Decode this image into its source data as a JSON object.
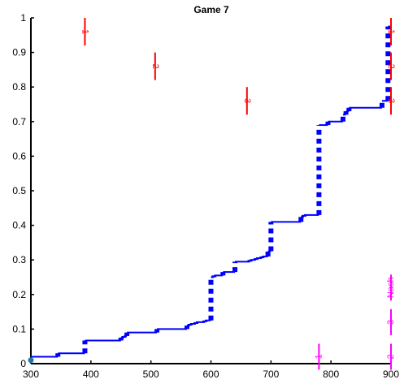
{
  "chart_data": {
    "type": "line",
    "title": "Game 7",
    "xlabel": "",
    "ylabel": "",
    "xlim": [
      300,
      900
    ],
    "ylim": [
      0,
      1
    ],
    "grid": false,
    "legend": "none",
    "x_ticks": [
      300,
      400,
      500,
      600,
      700,
      800,
      900
    ],
    "y_ticks": [
      0,
      0.1,
      0.2,
      0.3,
      0.4,
      0.5,
      0.6,
      0.7,
      0.8,
      0.9,
      1
    ],
    "colors": {
      "curve": "#0000ff",
      "markers": "#ff0000",
      "nash": "#ff00ff",
      "start": "#1f77b4"
    },
    "series": [
      {
        "style": "step",
        "points": [
          [
            300,
            0.02
          ],
          [
            345,
            0.02
          ],
          [
            345,
            0.03
          ],
          [
            390,
            0.03
          ],
          [
            390,
            0.067
          ],
          [
            450,
            0.067
          ],
          [
            450,
            0.075
          ],
          [
            455,
            0.075
          ],
          [
            455,
            0.08
          ],
          [
            460,
            0.08
          ],
          [
            460,
            0.09
          ],
          [
            510,
            0.09
          ],
          [
            510,
            0.1
          ],
          [
            560,
            0.1
          ],
          [
            560,
            0.11
          ],
          [
            565,
            0.11
          ],
          [
            565,
            0.115
          ],
          [
            575,
            0.115
          ],
          [
            575,
            0.12
          ],
          [
            590,
            0.12
          ],
          [
            590,
            0.125
          ],
          [
            600,
            0.125
          ],
          [
            600,
            0.25
          ],
          [
            605,
            0.25
          ],
          [
            605,
            0.255
          ],
          [
            620,
            0.255
          ],
          [
            620,
            0.265
          ],
          [
            640,
            0.265
          ],
          [
            640,
            0.295
          ],
          [
            665,
            0.295
          ],
          [
            665,
            0.3
          ],
          [
            675,
            0.3
          ],
          [
            675,
            0.305
          ],
          [
            685,
            0.305
          ],
          [
            685,
            0.31
          ],
          [
            695,
            0.31
          ],
          [
            695,
            0.325
          ],
          [
            700,
            0.325
          ],
          [
            700,
            0.41
          ],
          [
            750,
            0.41
          ],
          [
            750,
            0.425
          ],
          [
            755,
            0.425
          ],
          [
            755,
            0.43
          ],
          [
            780,
            0.43
          ],
          [
            780,
            0.69
          ],
          [
            795,
            0.69
          ],
          [
            795,
            0.7
          ],
          [
            820,
            0.7
          ],
          [
            820,
            0.72
          ],
          [
            825,
            0.72
          ],
          [
            825,
            0.73
          ],
          [
            830,
            0.73
          ],
          [
            830,
            0.74
          ],
          [
            885,
            0.74
          ],
          [
            885,
            0.76
          ],
          [
            895,
            0.76
          ],
          [
            895,
            0.975
          ],
          [
            900,
            0.975
          ]
        ]
      }
    ],
    "start_point": [
      300,
      0.01
    ],
    "markers": [
      {
        "x": 390,
        "y": 0.96,
        "label": "1"
      },
      {
        "x": 507,
        "y": 0.86,
        "label": "2"
      },
      {
        "x": 660,
        "y": 0.76,
        "label": "3"
      },
      {
        "x": 900,
        "y": 0.96,
        "label": "1"
      },
      {
        "x": 900,
        "y": 0.86,
        "label": "2"
      },
      {
        "x": 900,
        "y": 0.76,
        "label": "3"
      }
    ],
    "nash_markers": [
      {
        "x": 780,
        "y": 0.02,
        "label": "1"
      },
      {
        "x": 900,
        "y": 0.02,
        "label": "2"
      },
      {
        "x": 900,
        "y": 0.12,
        "label": "3"
      },
      {
        "x": 900,
        "y": 0.22,
        "label": "Nash"
      }
    ]
  }
}
